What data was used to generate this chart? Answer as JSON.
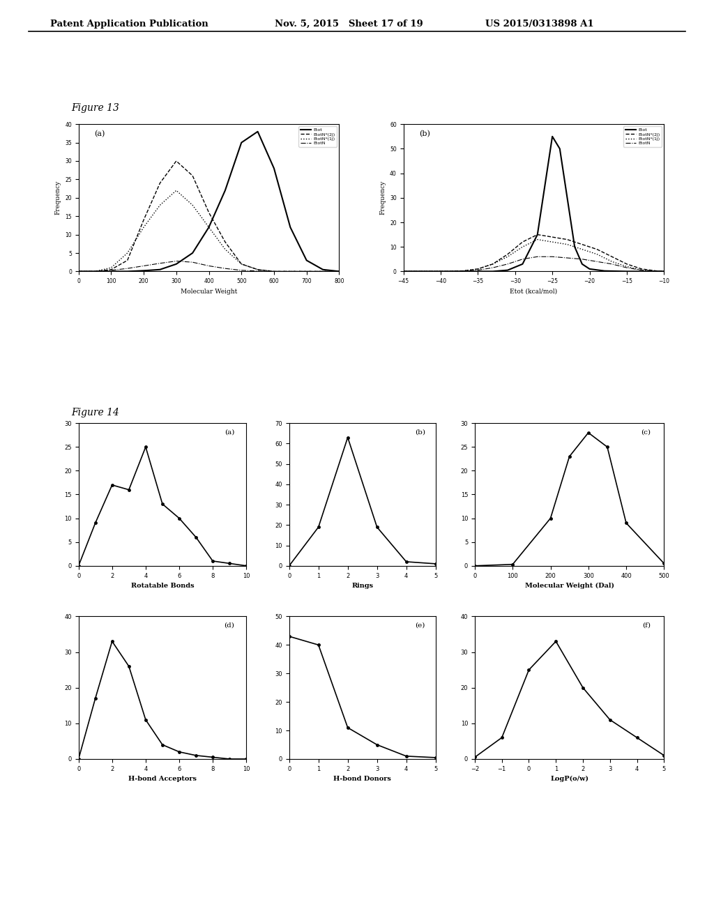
{
  "header_left": "Patent Application Publication",
  "header_mid": "Nov. 5, 2015   Sheet 17 of 19",
  "header_right": "US 2015/0313898 A1",
  "fig13_label": "Figure 13",
  "fig14_label": "Figure 14",
  "fig13a": {
    "label": "(a)",
    "xlabel": "Molecular Weight",
    "ylabel": "Frequency",
    "xlim": [
      0,
      800
    ],
    "ylim": [
      0,
      40
    ],
    "xticks": [
      0,
      100,
      200,
      300,
      400,
      500,
      600,
      700,
      800
    ],
    "yticks": [
      0,
      5,
      10,
      15,
      20,
      25,
      30,
      35,
      40
    ],
    "legend": [
      "Etot",
      "EtotN*(2J)",
      "EtotN*(1J)",
      "EtotN"
    ],
    "curves": {
      "Etot": {
        "x": [
          0,
          50,
          100,
          150,
          200,
          250,
          300,
          350,
          400,
          450,
          500,
          550,
          600,
          650,
          700,
          750,
          800
        ],
        "y": [
          0,
          0,
          0,
          0,
          0.2,
          0.5,
          2,
          5,
          12,
          22,
          35,
          38,
          28,
          12,
          3,
          0.5,
          0
        ]
      },
      "EtotN2": {
        "x": [
          0,
          50,
          100,
          150,
          200,
          250,
          300,
          350,
          400,
          450,
          500,
          550,
          600,
          650,
          700,
          750,
          800
        ],
        "y": [
          0,
          0,
          0.5,
          3,
          14,
          24,
          30,
          26,
          16,
          8,
          2,
          0.5,
          0,
          0,
          0,
          0,
          0
        ]
      },
      "EtotN1": {
        "x": [
          0,
          50,
          100,
          150,
          200,
          250,
          300,
          350,
          400,
          450,
          500,
          550,
          600,
          650,
          700,
          750,
          800
        ],
        "y": [
          0,
          0,
          1,
          5,
          12,
          18,
          22,
          18,
          12,
          6,
          2,
          0.5,
          0,
          0,
          0,
          0,
          0
        ]
      },
      "EtotN": {
        "x": [
          0,
          50,
          100,
          150,
          200,
          250,
          300,
          350,
          400,
          450,
          500,
          550,
          600,
          650,
          700,
          750,
          800
        ],
        "y": [
          0,
          0,
          0.3,
          0.8,
          1.5,
          2.2,
          2.8,
          2.5,
          1.5,
          0.8,
          0.3,
          0.1,
          0,
          0,
          0,
          0,
          0
        ]
      }
    }
  },
  "fig13b": {
    "label": "(b)",
    "xlabel": "Etot (kcal/mol)",
    "ylabel": "Frequency",
    "xlim": [
      -45,
      -10
    ],
    "ylim": [
      0,
      60
    ],
    "xticks": [
      -45,
      -40,
      -35,
      -30,
      -25,
      -20,
      -15,
      -10
    ],
    "yticks": [
      0,
      10,
      20,
      30,
      40,
      50,
      60
    ],
    "legend": [
      "Etot",
      "EtotN*(2J)",
      "EtotN*(1J)",
      "EtotN"
    ],
    "curves": {
      "Etot": {
        "x": [
          -45,
          -43,
          -41,
          -39,
          -37,
          -35,
          -33,
          -31,
          -29,
          -27,
          -25,
          -24,
          -23,
          -22,
          -21,
          -20,
          -18,
          -15,
          -12,
          -10
        ],
        "y": [
          0,
          0,
          0,
          0,
          0,
          0,
          0,
          0.5,
          3,
          15,
          55,
          50,
          30,
          10,
          3,
          1,
          0.2,
          0,
          0,
          0
        ]
      },
      "EtotN2": {
        "x": [
          -45,
          -43,
          -41,
          -39,
          -37,
          -35,
          -33,
          -31,
          -29,
          -27,
          -25,
          -23,
          -21,
          -19,
          -17,
          -15,
          -13,
          -11,
          -10
        ],
        "y": [
          0,
          0,
          0,
          0,
          0.2,
          1,
          3,
          7,
          12,
          15,
          14,
          13,
          11,
          9,
          6,
          3,
          1,
          0.2,
          0
        ]
      },
      "EtotN1": {
        "x": [
          -45,
          -43,
          -41,
          -39,
          -37,
          -35,
          -33,
          -31,
          -29,
          -27,
          -25,
          -23,
          -21,
          -19,
          -17,
          -15,
          -13,
          -11,
          -10
        ],
        "y": [
          0,
          0,
          0,
          0,
          0.2,
          1,
          3,
          6,
          10,
          13,
          12,
          11,
          9,
          7,
          4,
          2,
          0.5,
          0.1,
          0
        ]
      },
      "EtotN": {
        "x": [
          -45,
          -43,
          -41,
          -39,
          -37,
          -35,
          -33,
          -31,
          -29,
          -27,
          -25,
          -23,
          -21,
          -19,
          -17,
          -15,
          -13,
          -11,
          -10
        ],
        "y": [
          0,
          0,
          0,
          0,
          0.1,
          0.5,
          1.5,
          3,
          5,
          6,
          6,
          5.5,
          5,
          4,
          3,
          1.5,
          0.5,
          0.1,
          0
        ]
      }
    }
  },
  "fig14a": {
    "label": "(a)",
    "xlabel": "Rotatable Bonds",
    "xlim": [
      0,
      10
    ],
    "ylim": [
      0,
      30
    ],
    "xticks": [
      0,
      2,
      4,
      6,
      8,
      10
    ],
    "yticks": [
      0,
      5,
      10,
      15,
      20,
      25,
      30
    ],
    "x": [
      0,
      1,
      2,
      3,
      4,
      5,
      6,
      7,
      8,
      9,
      10
    ],
    "y": [
      0,
      9,
      17,
      16,
      25,
      13,
      10,
      6,
      1,
      0.5,
      0
    ]
  },
  "fig14b": {
    "label": "(b)",
    "xlabel": "Rings",
    "xlim": [
      0,
      5
    ],
    "ylim": [
      0,
      70
    ],
    "xticks": [
      0,
      1,
      2,
      3,
      4,
      5
    ],
    "yticks": [
      0,
      10,
      20,
      30,
      40,
      50,
      60,
      70
    ],
    "x": [
      0,
      1,
      2,
      3,
      4,
      5
    ],
    "y": [
      0,
      19,
      63,
      19,
      2,
      1
    ]
  },
  "fig14c": {
    "label": "(c)",
    "xlabel": "Molecular Weight (Dal)",
    "xlim": [
      0,
      500
    ],
    "ylim": [
      0,
      30
    ],
    "xticks": [
      0,
      100,
      200,
      300,
      400,
      500
    ],
    "yticks": [
      0,
      5,
      10,
      15,
      20,
      25,
      30
    ],
    "x": [
      0,
      100,
      200,
      250,
      300,
      350,
      400,
      500
    ],
    "y": [
      0,
      0.3,
      10,
      23,
      28,
      25,
      9,
      0.5
    ]
  },
  "fig14d": {
    "label": "(d)",
    "xlabel": "H-bond Acceptors",
    "xlim": [
      0,
      10
    ],
    "ylim": [
      0,
      40
    ],
    "xticks": [
      0,
      2,
      4,
      6,
      8,
      10
    ],
    "yticks": [
      0,
      10,
      20,
      30,
      40
    ],
    "x": [
      0,
      1,
      2,
      3,
      4,
      5,
      6,
      7,
      8,
      9,
      10
    ],
    "y": [
      0,
      17,
      33,
      26,
      11,
      4,
      2,
      1,
      0.5,
      0,
      0
    ]
  },
  "fig14e": {
    "label": "(e)",
    "xlabel": "H-bond Donors",
    "xlim": [
      0,
      5
    ],
    "ylim": [
      0,
      50
    ],
    "xticks": [
      0,
      1,
      2,
      3,
      4,
      5
    ],
    "yticks": [
      0,
      10,
      20,
      30,
      40,
      50
    ],
    "x": [
      0,
      1,
      2,
      3,
      4,
      5
    ],
    "y": [
      43,
      40,
      11,
      5,
      1,
      0.5
    ]
  },
  "fig14f": {
    "label": "(f)",
    "xlabel": "LogP(o/w)",
    "xlim": [
      -2,
      5
    ],
    "ylim": [
      0,
      40
    ],
    "xticks": [
      -2,
      -1,
      0,
      1,
      2,
      3,
      4,
      5
    ],
    "yticks": [
      0,
      10,
      20,
      30,
      40
    ],
    "x": [
      -2,
      -1,
      0,
      1,
      2,
      3,
      4,
      5
    ],
    "y": [
      0.5,
      6,
      25,
      33,
      20,
      11,
      6,
      1
    ]
  }
}
